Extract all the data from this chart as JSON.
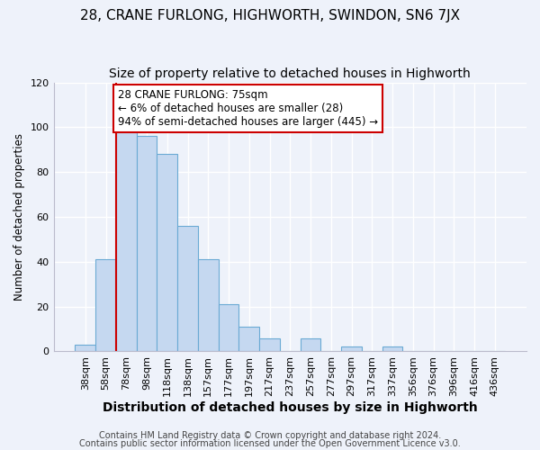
{
  "title": "28, CRANE FURLONG, HIGHWORTH, SWINDON, SN6 7JX",
  "subtitle": "Size of property relative to detached houses in Highworth",
  "xlabel": "Distribution of detached houses by size in Highworth",
  "ylabel": "Number of detached properties",
  "bar_labels": [
    "38sqm",
    "58sqm",
    "78sqm",
    "98sqm",
    "118sqm",
    "138sqm",
    "157sqm",
    "177sqm",
    "197sqm",
    "217sqm",
    "237sqm",
    "257sqm",
    "277sqm",
    "297sqm",
    "317sqm",
    "337sqm",
    "356sqm",
    "376sqm",
    "396sqm",
    "416sqm",
    "436sqm"
  ],
  "bar_values": [
    3,
    41,
    100,
    96,
    88,
    56,
    41,
    21,
    11,
    6,
    0,
    6,
    0,
    2,
    0,
    2,
    0,
    0,
    0,
    0,
    0
  ],
  "bar_color": "#c5d8f0",
  "bar_edge_color": "#6aaad4",
  "vline_color": "#cc0000",
  "annotation_line1": "28 CRANE FURLONG: 75sqm",
  "annotation_line2": "← 6% of detached houses are smaller (28)",
  "annotation_line3": "94% of semi-detached houses are larger (445) →",
  "annotation_box_edge": "#cc0000",
  "ylim": [
    0,
    120
  ],
  "yticks": [
    0,
    20,
    40,
    60,
    80,
    100,
    120
  ],
  "footer1": "Contains HM Land Registry data © Crown copyright and database right 2024.",
  "footer2": "Contains public sector information licensed under the Open Government Licence v3.0.",
  "bg_color": "#eef2fa",
  "plot_bg_color": "#eef2fa",
  "grid_color": "#ffffff",
  "title_fontsize": 11,
  "subtitle_fontsize": 10,
  "xlabel_fontsize": 10,
  "ylabel_fontsize": 8.5,
  "tick_fontsize": 8,
  "annot_fontsize": 8.5,
  "footer_fontsize": 7
}
